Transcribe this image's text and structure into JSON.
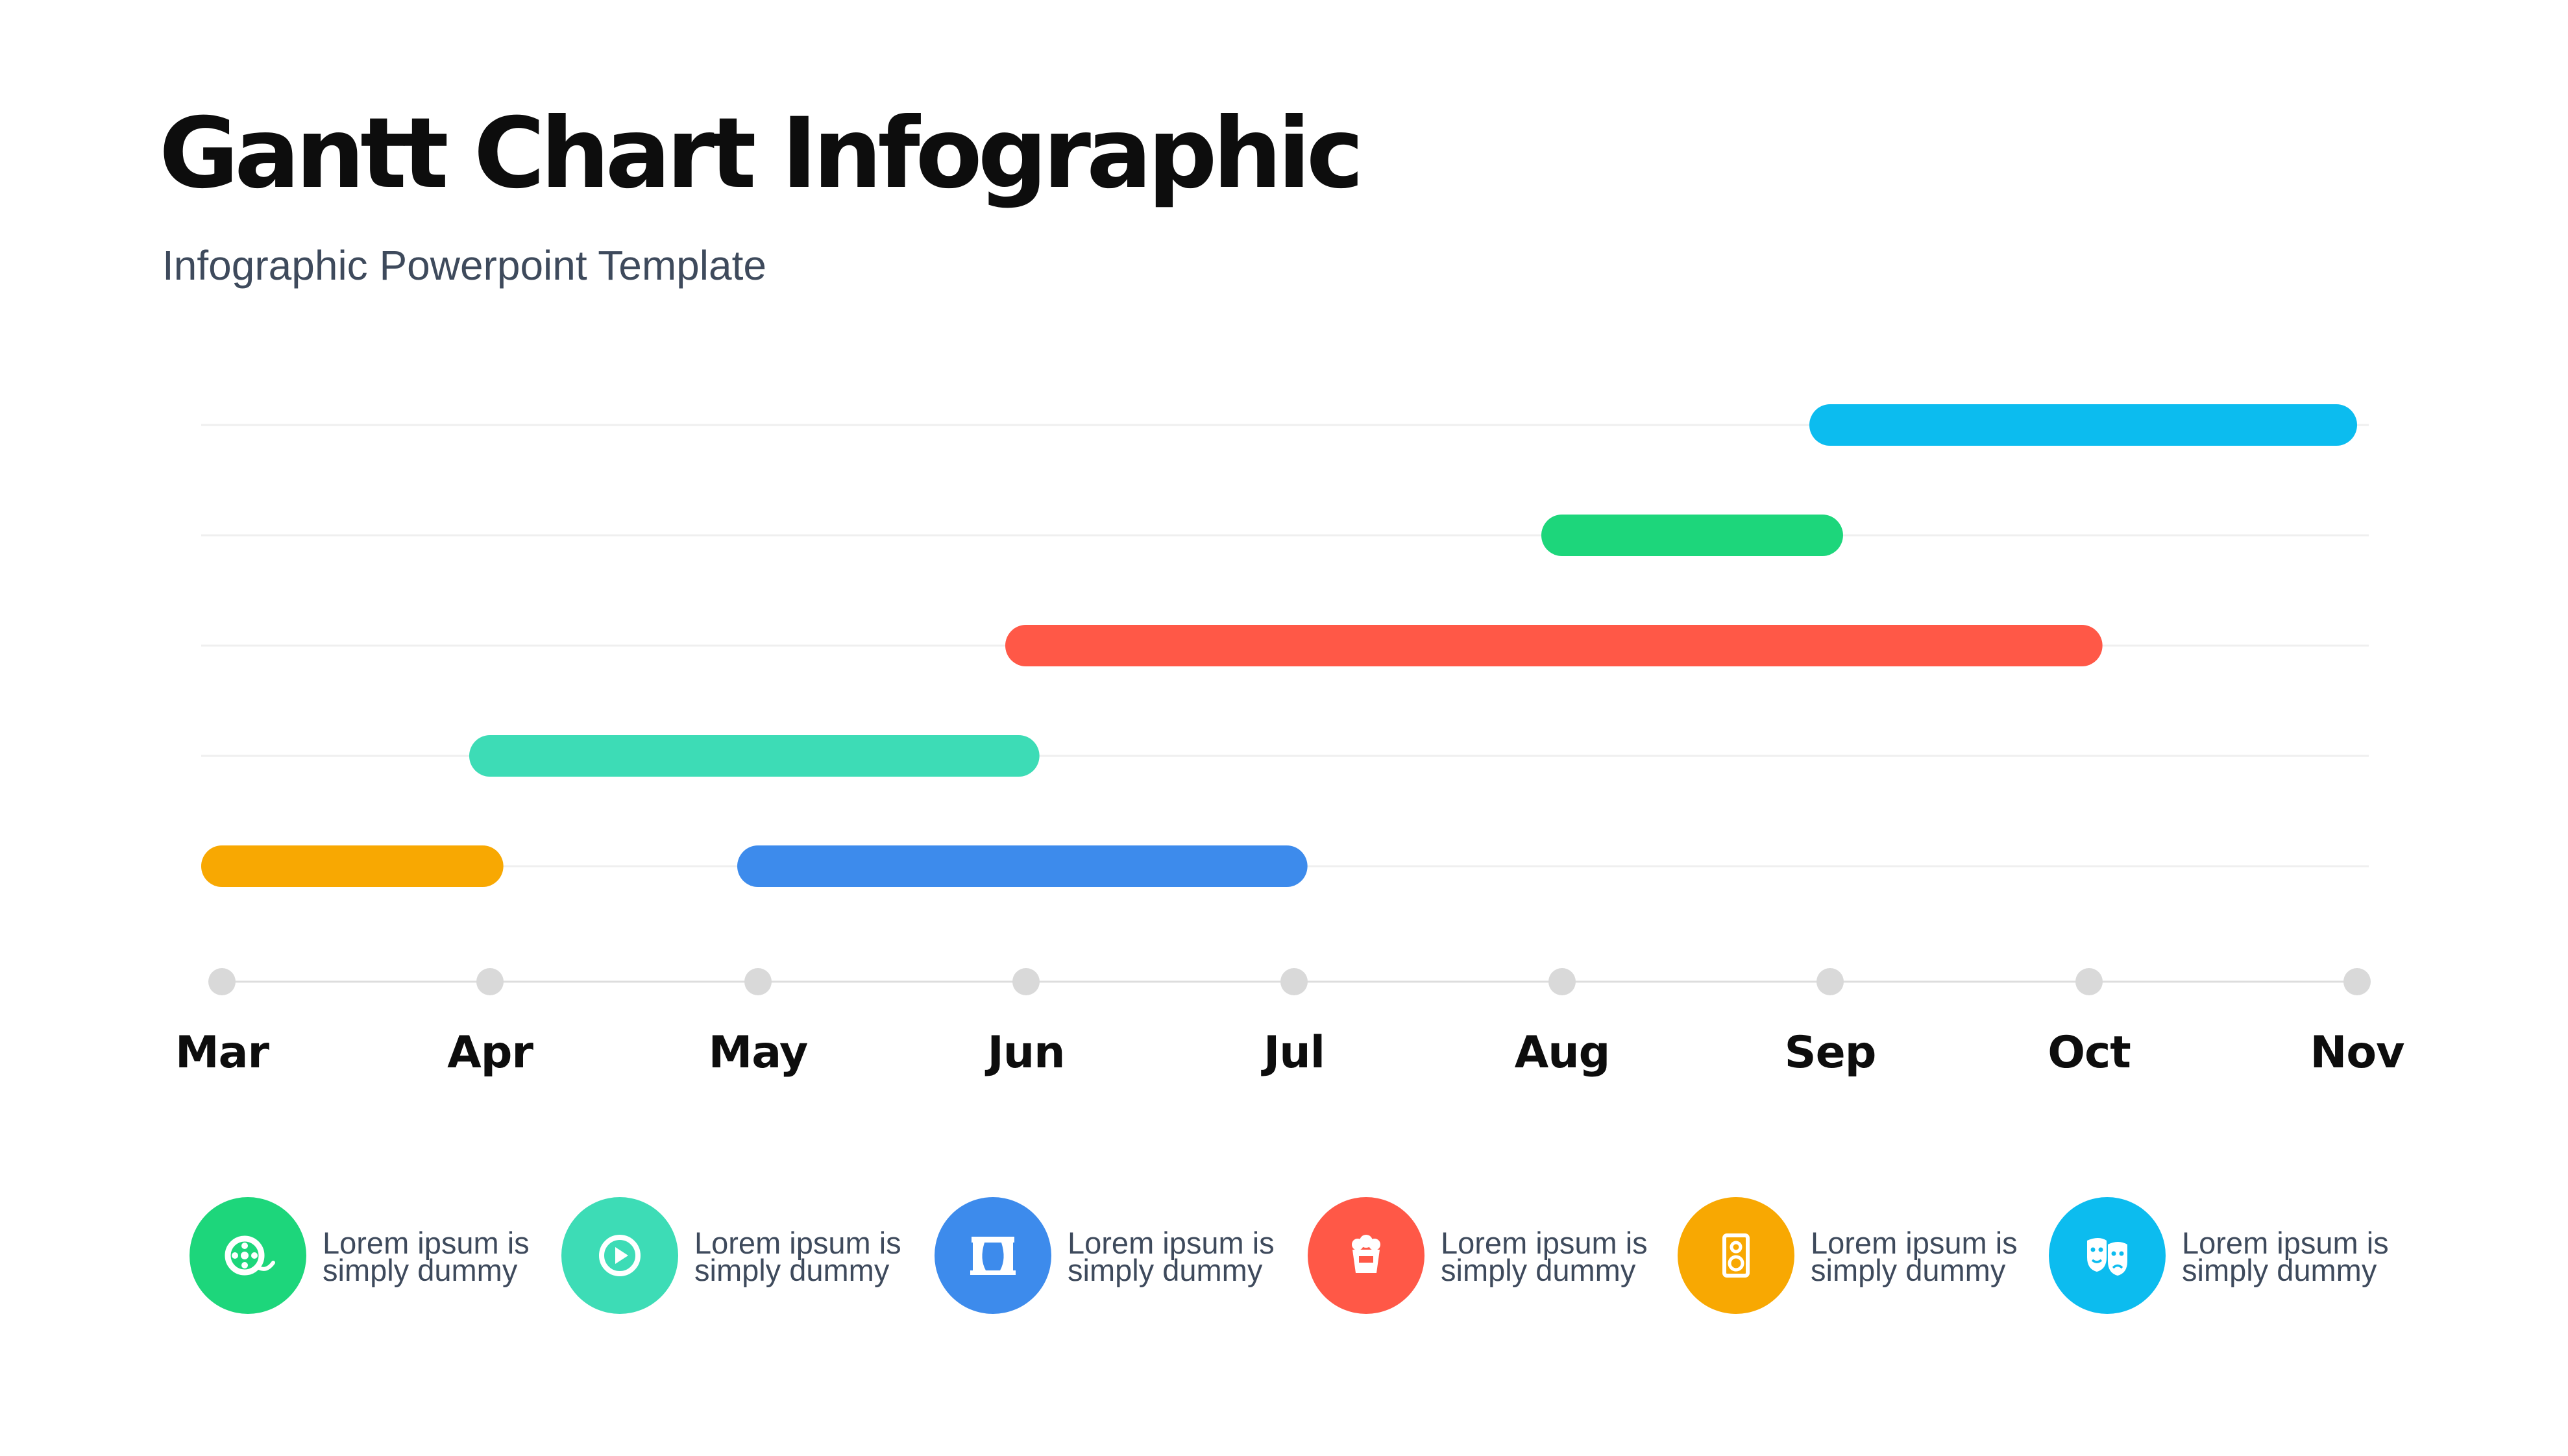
{
  "header": {
    "title": "Gantt Chart Infographic",
    "subtitle": "Infographic Powerpoint Template"
  },
  "chart_data": {
    "type": "gantt",
    "title": "Gantt Chart Infographic",
    "months": [
      "Mar",
      "Apr",
      "May",
      "Jun",
      "Jul",
      "Aug",
      "Sep",
      "Oct",
      "Nov"
    ],
    "rows": 5,
    "tasks": [
      {
        "row": 1,
        "start": 6.0,
        "end": 8.0,
        "color": "#0cbcef"
      },
      {
        "row": 2,
        "start": 5.0,
        "end": 6.05,
        "color": "#1dd67b"
      },
      {
        "row": 3,
        "start": 3.0,
        "end": 7.05,
        "color": "#ff5847"
      },
      {
        "row": 4,
        "start": 1.0,
        "end": 3.05,
        "color": "#3ddcb6"
      },
      {
        "row": 5,
        "start": 0.0,
        "end": 1.05,
        "color": "#f8a802"
      },
      {
        "row": 5,
        "start": 2.0,
        "end": 4.05,
        "color": "#3d8bec"
      }
    ]
  },
  "legend": [
    {
      "line1": "Lorem ipsum is",
      "line2": "simply dummy",
      "icon": "film-reel-icon",
      "color": "#1dd67b"
    },
    {
      "line1": "Lorem ipsum is",
      "line2": "simply dummy",
      "icon": "play-icon",
      "color": "#3ddcb6"
    },
    {
      "line1": "Lorem ipsum is",
      "line2": "simply dummy",
      "icon": "stage-curtain-icon",
      "color": "#3d8bec"
    },
    {
      "line1": "Lorem ipsum is",
      "line2": "simply dummy",
      "icon": "popcorn-icon",
      "color": "#ff5847"
    },
    {
      "line1": "Lorem ipsum is",
      "line2": "simply dummy",
      "icon": "speaker-icon",
      "color": "#f8a802"
    },
    {
      "line1": "Lorem ipsum is",
      "line2": "simply dummy",
      "icon": "theater-masks-icon",
      "color": "#0cbcef"
    }
  ]
}
